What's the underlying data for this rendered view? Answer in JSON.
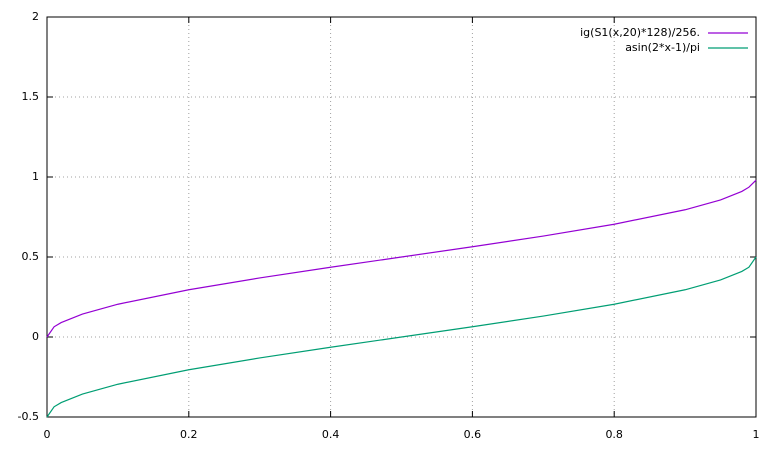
{
  "chart_data": {
    "type": "line",
    "x": [
      0,
      0.01,
      0.02,
      0.05,
      0.1,
      0.2,
      0.3,
      0.4,
      0.5,
      0.6,
      0.7,
      0.8,
      0.9,
      0.95,
      0.98,
      0.99,
      1
    ],
    "series": [
      {
        "name": "ig(S1(x,20)*128)/256.",
        "color": "#9400d3",
        "values": [
          0.0,
          0.0638,
          0.0903,
          0.1436,
          0.2048,
          0.2952,
          0.369,
          0.4359,
          0.5,
          0.5641,
          0.631,
          0.7048,
          0.7952,
          0.8564,
          0.9097,
          0.9362,
          0.98
        ]
      },
      {
        "name": "asin(2*x-1)/pi",
        "color": "#009e73",
        "values": [
          -0.5,
          -0.4362,
          -0.4097,
          -0.3564,
          -0.2952,
          -0.2048,
          -0.131,
          -0.0641,
          0,
          0.0641,
          0.131,
          0.2048,
          0.2952,
          0.3564,
          0.4097,
          0.4362,
          0.5
        ]
      }
    ],
    "xlim": [
      0,
      1
    ],
    "xticks": [
      0,
      0.2,
      0.4,
      0.6,
      0.8,
      1
    ],
    "ylim": [
      -0.5,
      2
    ],
    "yticks": [
      -0.5,
      0,
      0.5,
      1,
      1.5,
      2
    ],
    "grid": true,
    "legend": "top-right"
  }
}
